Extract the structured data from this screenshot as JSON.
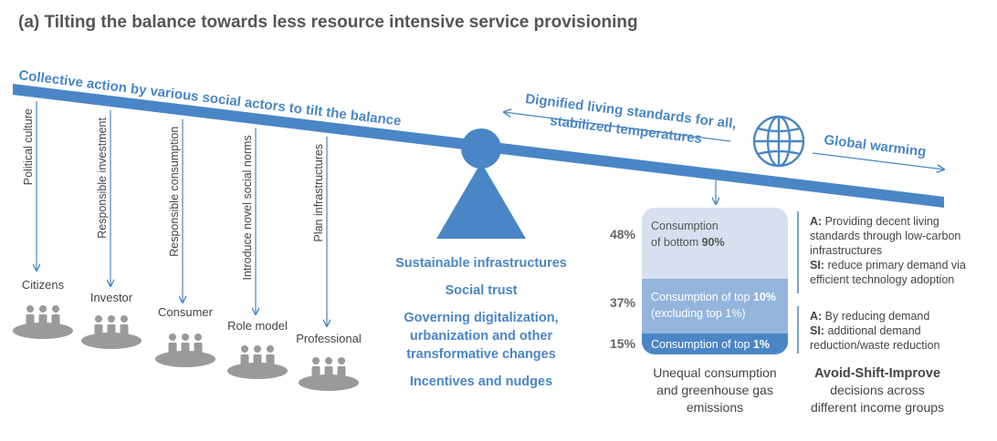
{
  "title": "(a) Tilting the balance towards less resource intensive service provisioning",
  "beam": {
    "left_label": "Collective action by various social actors to tilt the balance",
    "right_label_line1": "Dignified living standards for all,",
    "right_label_line2": "stabilized temperatures",
    "globe_label": "Global warming"
  },
  "actions": [
    {
      "action": "Political culture",
      "actor": "Citizens"
    },
    {
      "action": "Responsible investment",
      "actor": "Investor"
    },
    {
      "action": "Responsible consumption",
      "actor": "Consumer"
    },
    {
      "action": "Introduce novel social norms",
      "actor": "Role model"
    },
    {
      "action": "Plan infrastructures",
      "actor": "Professional"
    }
  ],
  "fulcrum_items": [
    [
      "Sustainable infrastructures"
    ],
    [
      "Social trust"
    ],
    [
      "Governing digitalization,",
      "urbanization and other",
      "transformative changes"
    ],
    [
      "Incentives and nudges"
    ]
  ],
  "consumption": {
    "segments": [
      {
        "pct": "48%",
        "label_line1": "Consumption",
        "label_line2_pre": "of bottom ",
        "label_line2_bold": "90%",
        "color": "#d6e0ef",
        "text_color": "#555555"
      },
      {
        "pct": "37%",
        "label_line1_pre": "Consumption of top ",
        "label_line1_bold": "10%",
        "label_line2": "(excluding top 1%)",
        "color": "#93b5dc",
        "text_color": "#ffffff"
      },
      {
        "pct": "15%",
        "label_line1_pre": "Consumption of top ",
        "label_line1_bold": "1%",
        "color": "#4a86c5",
        "text_color": "#ffffff"
      }
    ],
    "caption": [
      "Unequal consumption",
      "and greenhouse gas",
      "emissions"
    ]
  },
  "strategies": {
    "top": {
      "a_key": "A:",
      "a_text": [
        "Providing decent living",
        "standards through low-carbon",
        "infrastructures"
      ],
      "si_key": "SI:",
      "si_text": [
        "reduce primary demand via",
        "efficient technology adoption"
      ]
    },
    "bottom": {
      "a_key": "A:",
      "a_text": [
        "By reducing demand"
      ],
      "si_key": "SI:",
      "si_text": [
        "additional demand",
        "reduction/waste reduction"
      ]
    },
    "caption_title": "Avoid-Shift-Improve",
    "caption_lines": [
      "decisions across",
      "different income groups"
    ]
  },
  "colors": {
    "accent": "#4a86c5",
    "gray_icon": "#9a9a9a",
    "text": "#555555"
  }
}
